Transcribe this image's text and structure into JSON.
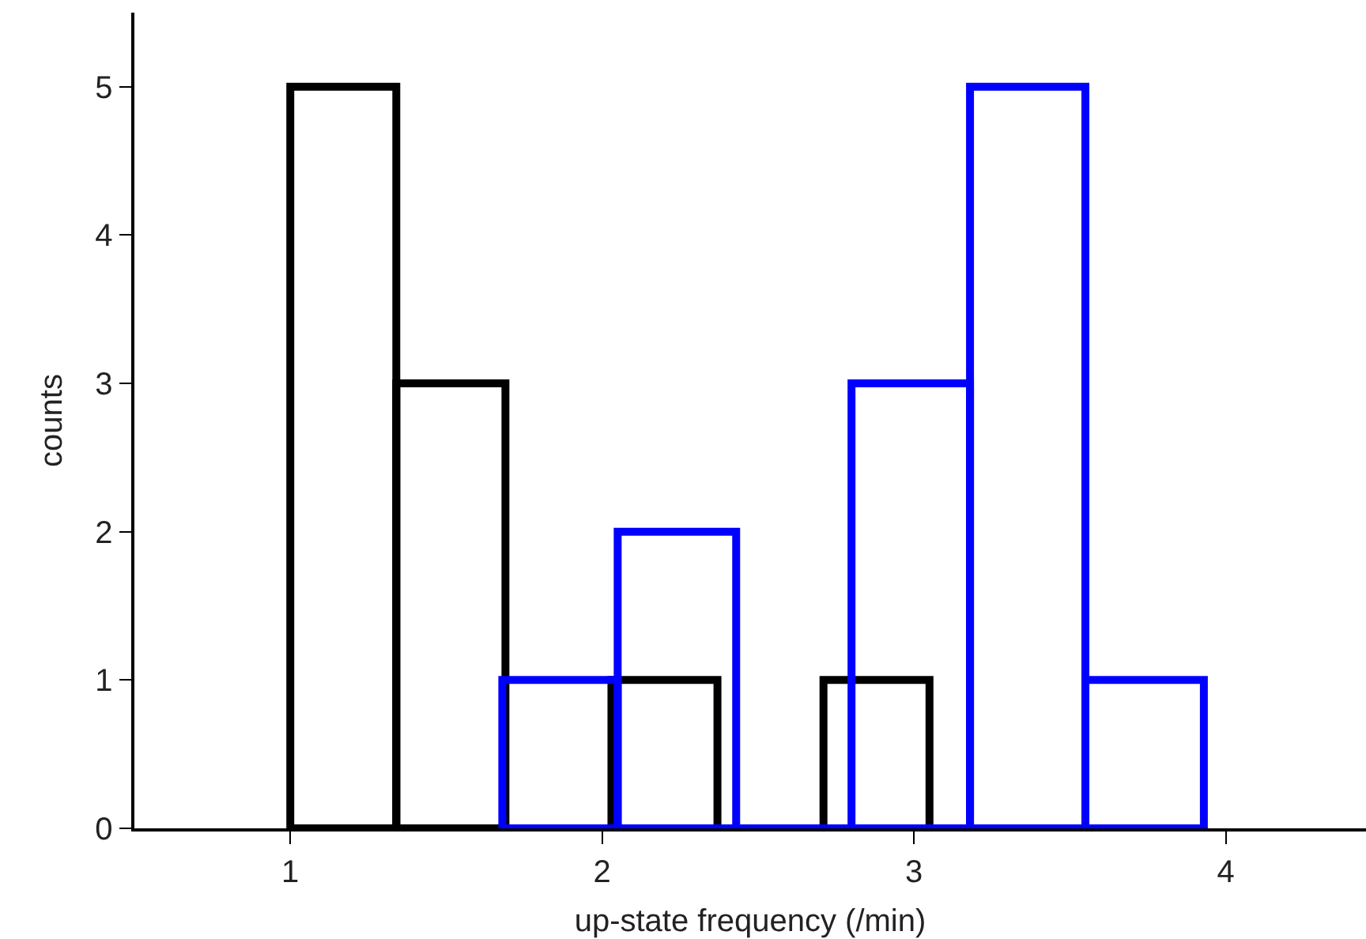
{
  "chart_data": {
    "type": "histogram",
    "xlabel": "up-state frequency (/min)",
    "ylabel": "counts",
    "bins": [
      1.0,
      1.34,
      1.69,
      2.03,
      2.37,
      2.71,
      3.05
    ],
    "series": [
      {
        "color": "#000000",
        "values": [
          5,
          3,
          null,
          1,
          0,
          1
        ]
      },
      {
        "color": "#0000ff",
        "bins": [
          1.68,
          2.05,
          2.43,
          2.8,
          3.18,
          3.55,
          3.93
        ],
        "values": [
          1,
          2,
          0,
          3,
          5,
          1
        ]
      }
    ],
    "xlim": [
      0.5,
      4.45
    ],
    "xticks": [
      1,
      2,
      3,
      4
    ],
    "ylim": [
      0,
      5.5
    ],
    "yticks": [
      0,
      1,
      2,
      3,
      4,
      5
    ]
  }
}
